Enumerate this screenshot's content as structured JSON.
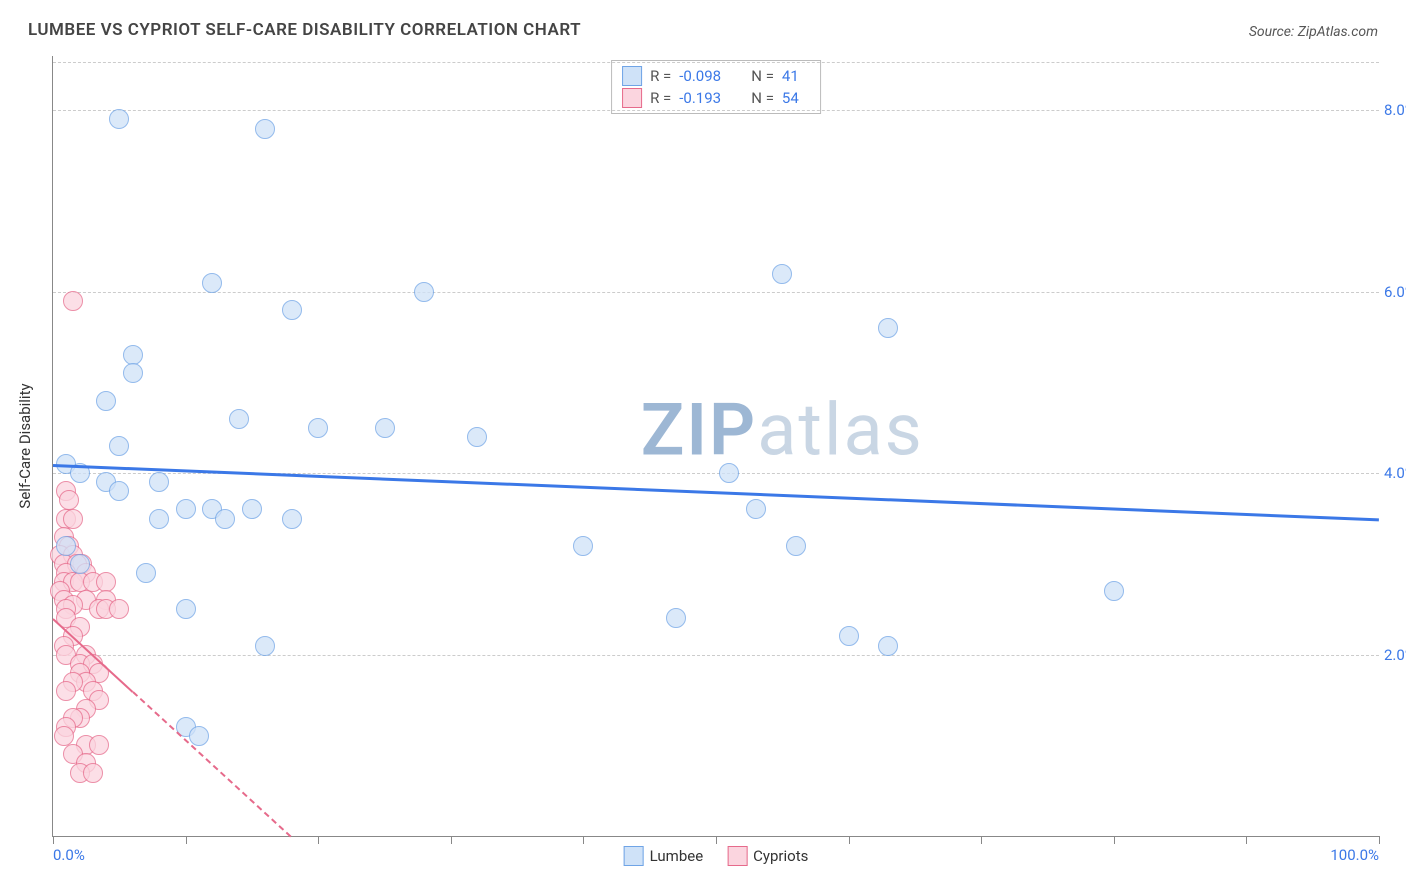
{
  "header": {
    "title": "LUMBEE VS CYPRIOT SELF-CARE DISABILITY CORRELATION CHART",
    "source": "Source: ZipAtlas.com"
  },
  "watermark": {
    "zip": "ZIP",
    "atlas": "atlas",
    "zip_color": "#9db7d4",
    "atlas_color": "#c9d6e4"
  },
  "chart": {
    "type": "scatter",
    "y_axis_label": "Self-Care Disability",
    "background_color": "#ffffff",
    "grid_color": "#cccccc",
    "axis_color": "#888888",
    "xlim": [
      0,
      100
    ],
    "ylim": [
      0,
      8.6
    ],
    "x_ticks": [
      0,
      10,
      20,
      30,
      40,
      50,
      60,
      70,
      80,
      90,
      100
    ],
    "x_tick_labels": {
      "0": "0.0%",
      "100": "100.0%"
    },
    "x_tick_label_color": "#3b78e7",
    "y_gridlines": [
      2,
      4,
      6,
      8
    ],
    "y_tick_labels": {
      "2": "2.0%",
      "4": "4.0%",
      "6": "6.0%",
      "8": "8.0%"
    },
    "y_tick_label_color": "#3b78e7",
    "marker_radius": 10,
    "marker_border_width": 1.5,
    "series": {
      "lumbee": {
        "label": "Lumbee",
        "fill": "#cfe2f8",
        "stroke": "#6fa4e6",
        "fill_opacity": 0.75,
        "points": [
          [
            5,
            7.9
          ],
          [
            16,
            7.8
          ],
          [
            12,
            6.1
          ],
          [
            28,
            6.0
          ],
          [
            55,
            6.2
          ],
          [
            18,
            5.8
          ],
          [
            6,
            5.3
          ],
          [
            6,
            5.1
          ],
          [
            4,
            4.8
          ],
          [
            63,
            5.6
          ],
          [
            5,
            4.3
          ],
          [
            14,
            4.6
          ],
          [
            20,
            4.5
          ],
          [
            25,
            4.5
          ],
          [
            32,
            4.4
          ],
          [
            1,
            4.1
          ],
          [
            2,
            4.0
          ],
          [
            4,
            3.9
          ],
          [
            5,
            3.8
          ],
          [
            8,
            3.9
          ],
          [
            10,
            3.6
          ],
          [
            12,
            3.6
          ],
          [
            13,
            3.5
          ],
          [
            15,
            3.6
          ],
          [
            18,
            3.5
          ],
          [
            1,
            3.2
          ],
          [
            8,
            3.5
          ],
          [
            51,
            4.0
          ],
          [
            53,
            3.6
          ],
          [
            56,
            3.2
          ],
          [
            40,
            3.2
          ],
          [
            47,
            2.4
          ],
          [
            60,
            2.2
          ],
          [
            63,
            2.1
          ],
          [
            80,
            2.7
          ],
          [
            10,
            2.5
          ],
          [
            16,
            2.1
          ],
          [
            7,
            2.9
          ],
          [
            2,
            3.0
          ],
          [
            10,
            1.2
          ],
          [
            11,
            1.1
          ]
        ],
        "trend": {
          "y_at_x0": 4.1,
          "y_at_x100": 3.5,
          "color": "#3b78e7",
          "width": 3,
          "dash": "solid"
        }
      },
      "cypriots": {
        "label": "Cypriots",
        "fill": "#fbd5df",
        "stroke": "#e66a8b",
        "fill_opacity": 0.75,
        "points": [
          [
            1.5,
            5.9
          ],
          [
            1,
            3.8
          ],
          [
            1.2,
            3.7
          ],
          [
            1,
            3.5
          ],
          [
            1.5,
            3.5
          ],
          [
            0.8,
            3.3
          ],
          [
            1.2,
            3.2
          ],
          [
            0.5,
            3.1
          ],
          [
            1.5,
            3.1
          ],
          [
            2.2,
            3.0
          ],
          [
            0.8,
            3.0
          ],
          [
            1.8,
            3.0
          ],
          [
            2.5,
            2.9
          ],
          [
            1,
            2.9
          ],
          [
            0.8,
            2.8
          ],
          [
            1.5,
            2.8
          ],
          [
            2,
            2.8
          ],
          [
            3,
            2.8
          ],
          [
            4,
            2.8
          ],
          [
            0.5,
            2.7
          ],
          [
            2.5,
            2.6
          ],
          [
            4,
            2.6
          ],
          [
            0.8,
            2.6
          ],
          [
            1.5,
            2.55
          ],
          [
            1,
            2.5
          ],
          [
            3.5,
            2.5
          ],
          [
            4,
            2.5
          ],
          [
            5,
            2.5
          ],
          [
            1,
            2.4
          ],
          [
            2,
            2.3
          ],
          [
            1.5,
            2.2
          ],
          [
            0.8,
            2.1
          ],
          [
            1,
            2.0
          ],
          [
            2.5,
            2.0
          ],
          [
            2,
            1.9
          ],
          [
            3,
            1.9
          ],
          [
            3.5,
            1.8
          ],
          [
            2,
            1.8
          ],
          [
            2.5,
            1.7
          ],
          [
            1.5,
            1.7
          ],
          [
            1,
            1.6
          ],
          [
            3,
            1.6
          ],
          [
            3.5,
            1.5
          ],
          [
            2.5,
            1.4
          ],
          [
            2,
            1.3
          ],
          [
            1.5,
            1.3
          ],
          [
            1,
            1.2
          ],
          [
            0.8,
            1.1
          ],
          [
            2.5,
            1.0
          ],
          [
            3.5,
            1.0
          ],
          [
            1.5,
            0.9
          ],
          [
            2.5,
            0.8
          ],
          [
            2,
            0.7
          ],
          [
            3,
            0.7
          ]
        ],
        "trend": {
          "y_at_x0": 2.4,
          "y_at_x100": -11,
          "color": "#e66a8b",
          "width": 2,
          "dash": "dashed",
          "solid_until_x": 6
        }
      }
    }
  },
  "legend_top": {
    "rows": [
      {
        "swatch_fill": "#cfe2f8",
        "swatch_stroke": "#6fa4e6",
        "r_label": "R =",
        "r_value": "-0.098",
        "n_label": "N =",
        "n_value": "41"
      },
      {
        "swatch_fill": "#fbd5df",
        "swatch_stroke": "#e66a8b",
        "r_label": "R =",
        "r_value": "-0.193",
        "n_label": "N =",
        "n_value": "54"
      }
    ],
    "label_color": "#555",
    "value_color": "#3b78e7"
  },
  "legend_bottom": {
    "items": [
      {
        "swatch_fill": "#cfe2f8",
        "swatch_stroke": "#6fa4e6",
        "label": "Lumbee"
      },
      {
        "swatch_fill": "#fbd5df",
        "swatch_stroke": "#e66a8b",
        "label": "Cypriots"
      }
    ]
  }
}
